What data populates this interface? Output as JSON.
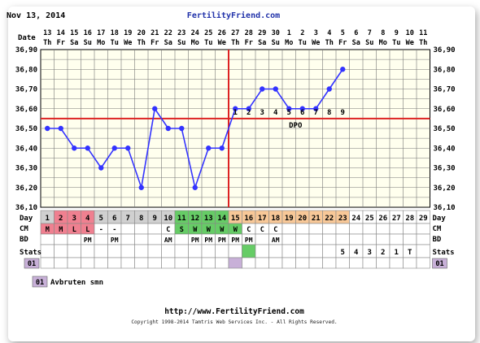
{
  "header": {
    "date": "Nov 13, 2014",
    "site": "FertilityFriend.com"
  },
  "footer": {
    "url": "http://www.FertilityFriend.com",
    "copyright": "Copyright 1998-2014 Tamtris Web Services Inc. - All Rights Reserved."
  },
  "legend": {
    "code": "01",
    "label": "Avbruten smn"
  },
  "row_labels": {
    "date": "Date",
    "day": "Day",
    "cm": "CM",
    "bd": "BD",
    "stats": "Stats",
    "code": "01"
  },
  "colors": {
    "temp_line": "#3333ff",
    "coverline": "#dd2222",
    "ovulation_line": "#dd2222",
    "period": "#f08090",
    "fertile": "#66cc66",
    "luteal": "#f8c898",
    "early": "#d0d0d0",
    "cm_fertile": "#66cc66",
    "code_box": "#c8b0d8",
    "frame_border": "#999999"
  },
  "chart_data": {
    "type": "line",
    "ylim": [
      36.1,
      36.9
    ],
    "yticks": [
      "36,10",
      "36,20",
      "36,30",
      "36,40",
      "36,50",
      "36,60",
      "36,70",
      "36,80",
      "36,90"
    ],
    "dates": [
      "13",
      "14",
      "15",
      "16",
      "17",
      "18",
      "19",
      "20",
      "21",
      "22",
      "23",
      "24",
      "25",
      "26",
      "27",
      "28",
      "29",
      "30",
      "1",
      "2",
      "3",
      "4",
      "5",
      "6",
      "7",
      "8",
      "9",
      "10",
      "11"
    ],
    "weekdays": [
      "Th",
      "Fr",
      "Sa",
      "Su",
      "Mo",
      "Tu",
      "We",
      "Th",
      "Fr",
      "Sa",
      "Su",
      "Mo",
      "Tu",
      "We",
      "Th",
      "Fr",
      "Sa",
      "Su",
      "Mo",
      "Tu",
      "We",
      "Th",
      "Fr",
      "Sa",
      "Su",
      "Mo",
      "Tu",
      "We",
      "Th"
    ],
    "days": [
      "1",
      "2",
      "3",
      "4",
      "5",
      "6",
      "7",
      "8",
      "9",
      "10",
      "11",
      "12",
      "13",
      "14",
      "15",
      "16",
      "17",
      "18",
      "19",
      "20",
      "21",
      "22",
      "23",
      "24",
      "25",
      "26",
      "27",
      "28",
      "29"
    ],
    "temps": [
      36.5,
      36.5,
      36.4,
      36.4,
      36.3,
      36.4,
      36.4,
      36.2,
      36.6,
      36.5,
      36.5,
      36.2,
      36.4,
      36.4,
      36.6,
      36.6,
      36.7,
      36.7,
      36.6,
      36.6,
      36.6,
      36.7,
      36.8,
      null,
      null,
      null,
      null,
      null,
      null
    ],
    "coverline": 36.55,
    "ovulation_day": 14,
    "dpo_labels": [
      "1",
      "2",
      "3",
      "4",
      "5",
      "6",
      "7",
      "8",
      "9"
    ],
    "dpo_start_day": 15,
    "dpo_text": "DPO",
    "phases": [
      "early",
      "period",
      "period",
      "period",
      "early",
      "early",
      "early",
      "early",
      "early",
      "early",
      "fertile",
      "fertile",
      "fertile",
      "fertile",
      "luteal",
      "luteal",
      "luteal",
      "luteal",
      "luteal",
      "luteal",
      "luteal",
      "luteal",
      "luteal",
      "none",
      "none",
      "none",
      "none",
      "none",
      "none"
    ],
    "cm": [
      "M",
      "M",
      "L",
      "L",
      "-",
      "-",
      "",
      "",
      "",
      "C",
      "S",
      "W",
      "W",
      "W",
      "W",
      "C",
      "C",
      "C",
      "",
      "",
      "",
      "",
      "",
      "",
      "",
      "",
      "",
      "",
      ""
    ],
    "bd": [
      "",
      "",
      "",
      "PM",
      "",
      "PM",
      "",
      "",
      "",
      "AM",
      "",
      "PM",
      "PM",
      "PM",
      "PM",
      "PM",
      "",
      "AM",
      "",
      "",
      "",
      "",
      "",
      "",
      "",
      "",
      "",
      "",
      ""
    ],
    "stats": [
      "",
      "",
      "",
      "",
      "",
      "",
      "",
      "",
      "",
      "",
      "",
      "",
      "",
      "",
      "",
      "",
      "",
      "",
      "",
      "",
      "",
      "",
      "5",
      "4",
      "3",
      "2",
      "1",
      "T",
      ""
    ],
    "code_marked_day": 15
  }
}
